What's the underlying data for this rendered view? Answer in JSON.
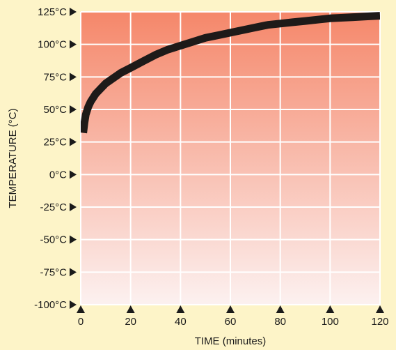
{
  "chart_data": {
    "type": "line",
    "xlabel": "TIME (minutes)",
    "ylabel": "TEMPERATURE (°C)",
    "xlim": [
      0,
      120
    ],
    "ylim": [
      -100,
      125
    ],
    "x_ticks": [
      0,
      20,
      40,
      60,
      80,
      100,
      120
    ],
    "x_tick_labels": [
      "0",
      "20",
      "40",
      "60",
      "80",
      "100",
      "120"
    ],
    "y_ticks": [
      125,
      100,
      75,
      50,
      25,
      0,
      -25,
      -50,
      -75,
      -100
    ],
    "y_tick_labels": [
      "125°C",
      "100°C",
      "75°C",
      "50°C",
      "25°C",
      "0°C",
      "-25°C",
      "-50°C",
      "-75°C",
      "-100°C"
    ],
    "grid": true,
    "series": [
      {
        "x": [
          1,
          1.5,
          2,
          3,
          4,
          6,
          8,
          10,
          13,
          16,
          20,
          25,
          30,
          35,
          40,
          45,
          50,
          55,
          60,
          65,
          70,
          75,
          80,
          85,
          90,
          95,
          100,
          105,
          110,
          115,
          120
        ],
        "y": [
          32,
          40,
          46,
          52,
          56,
          62,
          66,
          70,
          74,
          78,
          82,
          87,
          92,
          96,
          99,
          102,
          105,
          107,
          109,
          111,
          113,
          115,
          116,
          117,
          118,
          119,
          120,
          120.5,
          121,
          121.5,
          122
        ],
        "color": "#1e1a19"
      }
    ],
    "colors": {
      "background": "#fdf4c8",
      "plot_top": "#f5876a",
      "plot_bottom": "#fcf1f0",
      "grid": "#ffffff",
      "curve": "#1e1a19",
      "marker": "#1a1a1a"
    }
  }
}
